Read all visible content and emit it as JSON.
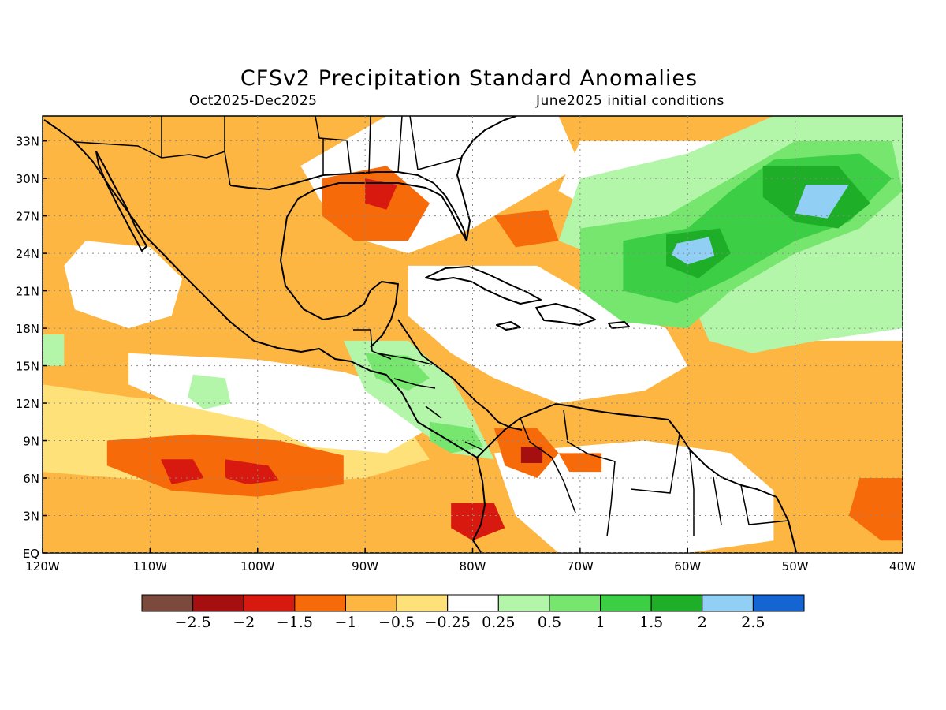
{
  "header": {
    "title": "CFSv2 Precipitation Standard Anomalies",
    "period": "Oct2025-Dec2025",
    "initial_conditions": "June2025 initial conditions"
  },
  "map": {
    "lon_range": [
      -120,
      -40
    ],
    "lat_range": [
      0,
      35
    ],
    "x_ticks": [
      {
        "value": -120,
        "label": "120W"
      },
      {
        "value": -110,
        "label": "110W"
      },
      {
        "value": -100,
        "label": "100W"
      },
      {
        "value": -90,
        "label": "90W"
      },
      {
        "value": -80,
        "label": "80W"
      },
      {
        "value": -70,
        "label": "70W"
      },
      {
        "value": -60,
        "label": "60W"
      },
      {
        "value": -50,
        "label": "50W"
      },
      {
        "value": -40,
        "label": "40W"
      }
    ],
    "y_ticks": [
      {
        "value": 0,
        "label": "EQ"
      },
      {
        "value": 3,
        "label": "3N"
      },
      {
        "value": 6,
        "label": "6N"
      },
      {
        "value": 9,
        "label": "9N"
      },
      {
        "value": 12,
        "label": "12N"
      },
      {
        "value": 15,
        "label": "15N"
      },
      {
        "value": 18,
        "label": "18N"
      },
      {
        "value": 21,
        "label": "21N"
      },
      {
        "value": 24,
        "label": "24N"
      },
      {
        "value": 27,
        "label": "27N"
      },
      {
        "value": 30,
        "label": "30N"
      },
      {
        "value": 33,
        "label": "33N"
      }
    ],
    "grid": "dotted",
    "background_color": "#fdb642"
  },
  "colorbar": {
    "colors": [
      "#7b4a3c",
      "#a50f0f",
      "#d7190f",
      "#f66a0a",
      "#fdb642",
      "#ffe17a",
      "#ffffff",
      "#b3f5a9",
      "#76e66f",
      "#3ccf45",
      "#1fae27",
      "#92cff5",
      "#1464d2"
    ],
    "labels": [
      "-2.5",
      "-2",
      "-1.5",
      "-1",
      "-0.5",
      "-0.25",
      "0.25",
      "0.5",
      "1",
      "1.5",
      "2",
      "2.5"
    ]
  },
  "anomaly_regions": [
    {
      "level": "-0.25",
      "color": "#ffe17a",
      "points": [
        [
          -120,
          13.5
        ],
        [
          -112,
          12.5
        ],
        [
          -100,
          11.5
        ],
        [
          -92,
          11
        ],
        [
          -86,
          10
        ],
        [
          -84,
          7.5
        ],
        [
          -90,
          6
        ],
        [
          -100,
          5.5
        ],
        [
          -110,
          5.8
        ],
        [
          -120,
          6.5
        ]
      ]
    },
    {
      "level": "-1",
      "color": "#f66a0a",
      "points": [
        [
          -114,
          9
        ],
        [
          -106,
          9.5
        ],
        [
          -98,
          9
        ],
        [
          -92,
          7.8
        ],
        [
          -92,
          5.5
        ],
        [
          -100,
          4.5
        ],
        [
          -108,
          5
        ],
        [
          -114,
          7
        ]
      ]
    },
    {
      "level": "-1.5",
      "color": "#d7190f",
      "points": [
        [
          -109,
          7.5
        ],
        [
          -106,
          7.5
        ],
        [
          -105,
          6
        ],
        [
          -108,
          5.5
        ]
      ]
    },
    {
      "level": "-1.5",
      "color": "#d7190f",
      "points": [
        [
          -103,
          7.5
        ],
        [
          -99,
          7
        ],
        [
          -98,
          5.8
        ],
        [
          -101,
          5.5
        ],
        [
          -103,
          6
        ]
      ]
    },
    {
      "level": "0.25",
      "color": "#ffffff",
      "points": [
        [
          -116,
          25
        ],
        [
          -110,
          24.5
        ],
        [
          -107,
          22
        ],
        [
          -108,
          19
        ],
        [
          -112,
          18
        ],
        [
          -117,
          19.5
        ],
        [
          -118,
          23
        ]
      ]
    },
    {
      "level": "0.25",
      "color": "#ffffff",
      "points": [
        [
          -112,
          16
        ],
        [
          -100,
          15.5
        ],
        [
          -92,
          14.5
        ],
        [
          -86,
          13
        ],
        [
          -84,
          10
        ],
        [
          -88,
          8
        ],
        [
          -95,
          8.5
        ],
        [
          -100,
          10.5
        ],
        [
          -108,
          12
        ],
        [
          -112,
          13.5
        ]
      ]
    },
    {
      "level": "0.25",
      "color": "#ffffff",
      "points": [
        [
          -88,
          35
        ],
        [
          -72,
          35
        ],
        [
          -70,
          31
        ],
        [
          -76,
          28
        ],
        [
          -80,
          26
        ],
        [
          -86,
          24
        ],
        [
          -90,
          25
        ],
        [
          -94,
          28
        ],
        [
          -96,
          31
        ]
      ]
    },
    {
      "level": "0.25",
      "color": "#ffffff",
      "points": [
        [
          -86,
          23
        ],
        [
          -74,
          23
        ],
        [
          -68,
          20
        ],
        [
          -62,
          18
        ],
        [
          -60,
          15
        ],
        [
          -64,
          13
        ],
        [
          -72,
          12
        ],
        [
          -78,
          14
        ],
        [
          -82,
          16
        ],
        [
          -86,
          19
        ]
      ]
    },
    {
      "level": "0.25",
      "color": "#ffffff",
      "points": [
        [
          -70,
          33
        ],
        [
          -56,
          33
        ],
        [
          -48,
          30
        ],
        [
          -40,
          28
        ],
        [
          -40,
          17
        ],
        [
          -48,
          17
        ],
        [
          -56,
          18
        ],
        [
          -60,
          22
        ],
        [
          -66,
          26
        ],
        [
          -72,
          29
        ]
      ]
    },
    {
      "level": "0.25",
      "color": "#ffffff",
      "points": [
        [
          -78,
          8
        ],
        [
          -64,
          9
        ],
        [
          -56,
          8
        ],
        [
          -52,
          5
        ],
        [
          -52,
          1
        ],
        [
          -60,
          0
        ],
        [
          -72,
          0
        ],
        [
          -76,
          3
        ]
      ]
    },
    {
      "level": "0.5",
      "color": "#b3f5a9",
      "points": [
        [
          -70,
          30
        ],
        [
          -60,
          32
        ],
        [
          -52,
          35
        ],
        [
          -40,
          35
        ],
        [
          -40,
          18
        ],
        [
          -48,
          17
        ],
        [
          -54,
          16
        ],
        [
          -58,
          17
        ],
        [
          -60,
          21
        ],
        [
          -66,
          23
        ],
        [
          -72,
          25
        ]
      ]
    },
    {
      "level": "1",
      "color": "#76e66f",
      "points": [
        [
          -70,
          26
        ],
        [
          -62,
          27
        ],
        [
          -56,
          30
        ],
        [
          -50,
          33
        ],
        [
          -41,
          33
        ],
        [
          -40,
          29
        ],
        [
          -44,
          26
        ],
        [
          -50,
          24
        ],
        [
          -56,
          21
        ],
        [
          -60,
          18
        ],
        [
          -66,
          18.5
        ],
        [
          -70,
          21
        ]
      ]
    },
    {
      "level": "1.5",
      "color": "#3ccf45",
      "points": [
        [
          -66,
          25
        ],
        [
          -60,
          26
        ],
        [
          -56,
          29
        ],
        [
          -52,
          31.5
        ],
        [
          -44,
          32
        ],
        [
          -41,
          30
        ],
        [
          -45,
          26.5
        ],
        [
          -50,
          25
        ],
        [
          -56,
          22
        ],
        [
          -61,
          20
        ],
        [
          -66,
          21
        ]
      ]
    },
    {
      "level": "2",
      "color": "#1fae27",
      "points": [
        [
          -53,
          31
        ],
        [
          -46,
          31
        ],
        [
          -43,
          28
        ],
        [
          -46,
          26
        ],
        [
          -50,
          26.5
        ],
        [
          -53,
          28.5
        ]
      ]
    },
    {
      "level": "2",
      "color": "#1fae27",
      "points": [
        [
          -62,
          25.5
        ],
        [
          -57,
          26
        ],
        [
          -56,
          24
        ],
        [
          -59,
          22
        ],
        [
          -62,
          23
        ]
      ]
    },
    {
      "level": "2.5",
      "color": "#92cff5",
      "points": [
        [
          -49,
          29.5
        ],
        [
          -45,
          29.5
        ],
        [
          -47,
          26.8
        ],
        [
          -50,
          27.2
        ]
      ]
    },
    {
      "level": "2.5",
      "color": "#92cff5",
      "points": [
        [
          -61,
          24.8
        ],
        [
          -58,
          25.3
        ],
        [
          -57.5,
          23.8
        ],
        [
          -60,
          23.1
        ],
        [
          -61.5,
          23.9
        ]
      ]
    },
    {
      "level": "0.5",
      "color": "#b3f5a9",
      "points": [
        [
          -92,
          17
        ],
        [
          -86,
          17
        ],
        [
          -82,
          14
        ],
        [
          -80,
          11
        ],
        [
          -78,
          7.5
        ],
        [
          -82,
          8
        ],
        [
          -86,
          10.5
        ],
        [
          -90,
          13
        ]
      ]
    },
    {
      "level": "1",
      "color": "#76e66f",
      "points": [
        [
          -90,
          16
        ],
        [
          -86,
          15.8
        ],
        [
          -84,
          14
        ],
        [
          -86,
          13
        ],
        [
          -89,
          14
        ]
      ]
    },
    {
      "level": "1",
      "color": "#76e66f",
      "points": [
        [
          -84,
          10.5
        ],
        [
          -80,
          10
        ],
        [
          -79,
          8.5
        ],
        [
          -82,
          8
        ],
        [
          -84,
          9
        ]
      ]
    },
    {
      "level": "0.5",
      "color": "#b3f5a9",
      "points": [
        [
          -106,
          14.3
        ],
        [
          -103,
          14
        ],
        [
          -102.5,
          12
        ],
        [
          -105,
          11.5
        ],
        [
          -106.5,
          12.5
        ]
      ]
    },
    {
      "level": "-1",
      "color": "#f66a0a",
      "points": [
        [
          -94,
          30
        ],
        [
          -88,
          31
        ],
        [
          -84,
          28
        ],
        [
          -86,
          25
        ],
        [
          -91,
          25
        ],
        [
          -94,
          27
        ]
      ]
    },
    {
      "level": "-1.5",
      "color": "#d7190f",
      "points": [
        [
          -90,
          30
        ],
        [
          -87,
          29.5
        ],
        [
          -88,
          27.5
        ],
        [
          -90,
          28
        ]
      ]
    },
    {
      "level": "-1",
      "color": "#f66a0a",
      "points": [
        [
          -78,
          27
        ],
        [
          -73,
          27.5
        ],
        [
          -72,
          25
        ],
        [
          -76,
          24.5
        ]
      ]
    },
    {
      "level": "-1",
      "color": "#f66a0a",
      "points": [
        [
          -78,
          10
        ],
        [
          -74,
          10
        ],
        [
          -72,
          8
        ],
        [
          -74,
          6
        ],
        [
          -77,
          7
        ]
      ]
    },
    {
      "level": "-2",
      "color": "#a50f0f",
      "points": [
        [
          -75.5,
          8.5
        ],
        [
          -73.5,
          8.5
        ],
        [
          -73.5,
          7.2
        ],
        [
          -75.5,
          7.2
        ]
      ]
    },
    {
      "level": "-1.5",
      "color": "#d7190f",
      "points": [
        [
          -82,
          4
        ],
        [
          -78,
          4
        ],
        [
          -77,
          2
        ],
        [
          -80,
          1
        ],
        [
          -82,
          2
        ]
      ]
    },
    {
      "level": "-1",
      "color": "#f66a0a",
      "points": [
        [
          -72,
          8
        ],
        [
          -68,
          8
        ],
        [
          -68,
          6.5
        ],
        [
          -71,
          6.5
        ]
      ]
    },
    {
      "level": "-1",
      "color": "#f66a0a",
      "points": [
        [
          -44,
          6
        ],
        [
          -40,
          6
        ],
        [
          -40,
          1
        ],
        [
          -42,
          1
        ],
        [
          -45,
          3
        ]
      ]
    },
    {
      "level": "0.5",
      "color": "#b3f5a9",
      "points": [
        [
          -120,
          17.5
        ],
        [
          -118,
          17.5
        ],
        [
          -118,
          15
        ],
        [
          -120,
          15
        ]
      ]
    }
  ]
}
